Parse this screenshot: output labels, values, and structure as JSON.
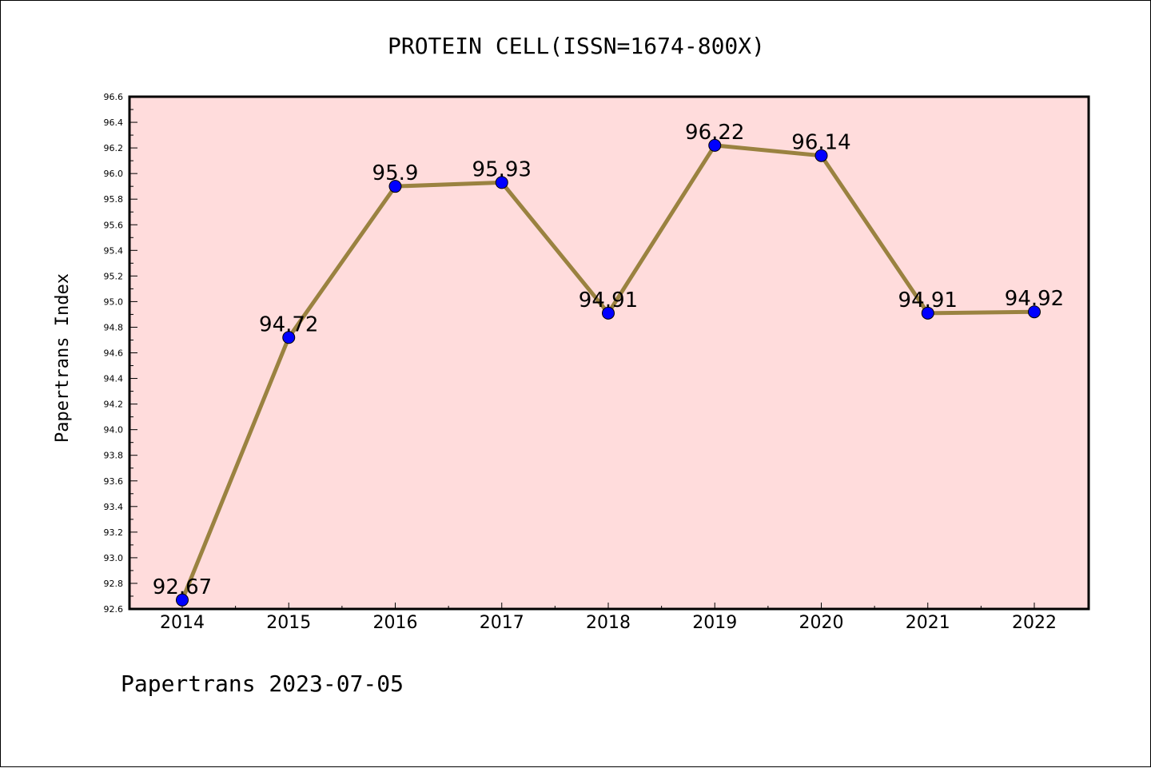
{
  "chart_data": {
    "type": "line",
    "title": "PROTEIN CELL(ISSN=1674-800X)",
    "ylabel": "Papertrans Index",
    "xlabel": "",
    "categories": [
      "2014",
      "2015",
      "2016",
      "2017",
      "2018",
      "2019",
      "2020",
      "2021",
      "2022"
    ],
    "values": [
      92.67,
      94.72,
      95.9,
      95.93,
      94.91,
      96.22,
      96.14,
      94.91,
      94.92
    ],
    "data_labels": [
      "92.67",
      "94.72",
      "95.9",
      "95.93",
      "94.91",
      "96.22",
      "96.14",
      "94.91",
      "94.92"
    ],
    "ylim": [
      92.6,
      96.6
    ],
    "yticks": [
      "92.6",
      "92.8",
      "93.0",
      "93.2",
      "93.4",
      "93.6",
      "93.8",
      "94.0",
      "94.2",
      "94.4",
      "94.6",
      "94.8",
      "95.0",
      "95.2",
      "95.4",
      "95.6",
      "95.8",
      "96.0",
      "96.2",
      "96.4",
      "96.6"
    ],
    "grid": false,
    "colors": {
      "plot_background": "#ffdcdc",
      "line": "#9a8240",
      "marker": "#0000ff"
    }
  },
  "footer": "Papertrans 2023-07-05"
}
